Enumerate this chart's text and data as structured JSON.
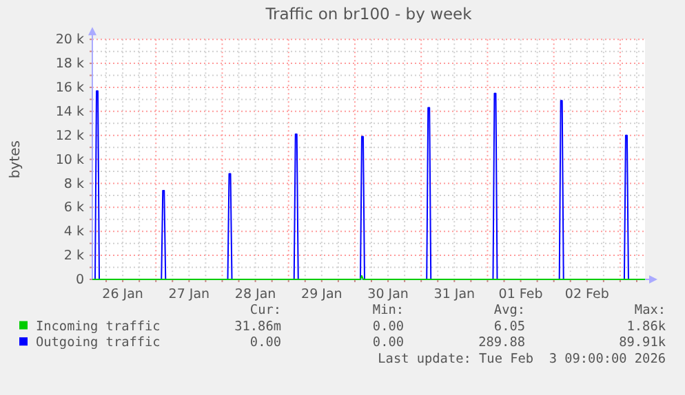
{
  "chart_data": {
    "type": "line",
    "title": "Traffic on br100 - by week",
    "ylabel": "bytes",
    "xlim": [
      "2026-01-26T01:00",
      "2026-02-03T09:00"
    ],
    "xticks": [
      {
        "value": "2026-01-26T06:00",
        "label": null
      },
      {
        "value": "2026-01-26T12:00",
        "label": "26 Jan"
      },
      {
        "value": "2026-01-26T18:00",
        "label": null
      },
      {
        "value": "2026-01-27T00:00",
        "label": null
      },
      {
        "value": "2026-01-27T06:00",
        "label": null
      },
      {
        "value": "2026-01-27T12:00",
        "label": "27 Jan"
      },
      {
        "value": "2026-01-27T18:00",
        "label": null
      },
      {
        "value": "2026-01-28T00:00",
        "label": null
      },
      {
        "value": "2026-01-28T06:00",
        "label": null
      },
      {
        "value": "2026-01-28T12:00",
        "label": "28 Jan"
      },
      {
        "value": "2026-01-28T18:00",
        "label": null
      },
      {
        "value": "2026-01-29T00:00",
        "label": null
      },
      {
        "value": "2026-01-29T06:00",
        "label": null
      },
      {
        "value": "2026-01-29T12:00",
        "label": "29 Jan"
      },
      {
        "value": "2026-01-29T18:00",
        "label": null
      },
      {
        "value": "2026-01-30T00:00",
        "label": null
      },
      {
        "value": "2026-01-30T06:00",
        "label": null
      },
      {
        "value": "2026-01-30T12:00",
        "label": "30 Jan"
      },
      {
        "value": "2026-01-30T18:00",
        "label": null
      },
      {
        "value": "2026-01-31T00:00",
        "label": null
      },
      {
        "value": "2026-01-31T06:00",
        "label": null
      },
      {
        "value": "2026-01-31T12:00",
        "label": "31 Jan"
      },
      {
        "value": "2026-01-31T18:00",
        "label": null
      },
      {
        "value": "2026-02-01T00:00",
        "label": null
      },
      {
        "value": "2026-02-01T06:00",
        "label": null
      },
      {
        "value": "2026-02-01T12:00",
        "label": "01 Feb"
      },
      {
        "value": "2026-02-01T18:00",
        "label": null
      },
      {
        "value": "2026-02-02T00:00",
        "label": null
      },
      {
        "value": "2026-02-02T06:00",
        "label": null
      },
      {
        "value": "2026-02-02T12:00",
        "label": "02 Feb"
      },
      {
        "value": "2026-02-02T18:00",
        "label": null
      },
      {
        "value": "2026-02-03T00:00",
        "label": null
      },
      {
        "value": "2026-02-03T06:00",
        "label": null
      }
    ],
    "ylim": [
      0,
      20000
    ],
    "yticks": [
      {
        "value": 0,
        "label": "0"
      },
      {
        "value": 1000,
        "label": null
      },
      {
        "value": 2000,
        "label": "2 k"
      },
      {
        "value": 3000,
        "label": null
      },
      {
        "value": 4000,
        "label": "4 k"
      },
      {
        "value": 5000,
        "label": null
      },
      {
        "value": 6000,
        "label": "6 k"
      },
      {
        "value": 7000,
        "label": null
      },
      {
        "value": 8000,
        "label": "8 k"
      },
      {
        "value": 9000,
        "label": null
      },
      {
        "value": 10000,
        "label": "10 k"
      },
      {
        "value": 11000,
        "label": null
      },
      {
        "value": 12000,
        "label": "12 k"
      },
      {
        "value": 13000,
        "label": null
      },
      {
        "value": 14000,
        "label": "14 k"
      },
      {
        "value": 15000,
        "label": null
      },
      {
        "value": 16000,
        "label": "16 k"
      },
      {
        "value": 17000,
        "label": null
      },
      {
        "value": 18000,
        "label": "18 k"
      },
      {
        "value": 19000,
        "label": null
      },
      {
        "value": 20000,
        "label": "20 k"
      }
    ],
    "grid": true,
    "legend": "bottom",
    "series": [
      {
        "name": "Incoming traffic",
        "color": "#00cc00",
        "x": [
          "2026-01-26T01:00",
          "2026-01-30T02:00",
          "2026-01-30T02:30",
          "2026-01-30T03:00",
          "2026-02-03T09:00"
        ],
        "values": [
          0,
          0,
          300,
          0,
          0
        ]
      },
      {
        "name": "Outgoing traffic",
        "color": "#0000ff",
        "x": [
          "2026-01-26T01:00",
          "2026-01-26T02:00",
          "2026-01-26T02:30",
          "2026-01-26T03:00",
          "2026-01-26T03:30",
          "2026-01-27T02:00",
          "2026-01-27T02:30",
          "2026-01-27T03:00",
          "2026-01-27T03:30",
          "2026-01-28T02:00",
          "2026-01-28T02:30",
          "2026-01-28T03:00",
          "2026-01-28T03:30",
          "2026-01-29T02:00",
          "2026-01-29T02:30",
          "2026-01-29T03:00",
          "2026-01-29T03:30",
          "2026-01-30T02:00",
          "2026-01-30T02:30",
          "2026-01-30T03:00",
          "2026-01-30T03:30",
          "2026-01-31T02:00",
          "2026-01-31T02:30",
          "2026-01-31T03:00",
          "2026-01-31T03:30",
          "2026-02-01T02:00",
          "2026-02-01T02:30",
          "2026-02-01T03:00",
          "2026-02-01T03:30",
          "2026-02-02T02:00",
          "2026-02-02T02:30",
          "2026-02-02T03:00",
          "2026-02-02T03:30",
          "2026-02-03T01:30",
          "2026-02-03T02:00",
          "2026-02-03T02:30",
          "2026-02-03T03:00",
          "2026-02-03T09:00"
        ],
        "values": [
          0,
          0,
          15700,
          15700,
          0,
          0,
          7400,
          7400,
          0,
          0,
          8800,
          8800,
          0,
          0,
          12100,
          12100,
          0,
          0,
          11900,
          11900,
          0,
          0,
          14300,
          14300,
          0,
          0,
          15500,
          15500,
          0,
          0,
          14900,
          14900,
          0,
          0,
          12000,
          12000,
          0,
          0
        ]
      }
    ],
    "annotations": [
      "Cur:",
      "Min:",
      "Avg:",
      "Max:",
      "31.86m",
      "0.00",
      "6.05",
      "1.86k",
      "0.00",
      "0.00",
      "289.88",
      "89.91k",
      "Last update: Tue Feb  3 09:00:00 2026"
    ]
  }
}
